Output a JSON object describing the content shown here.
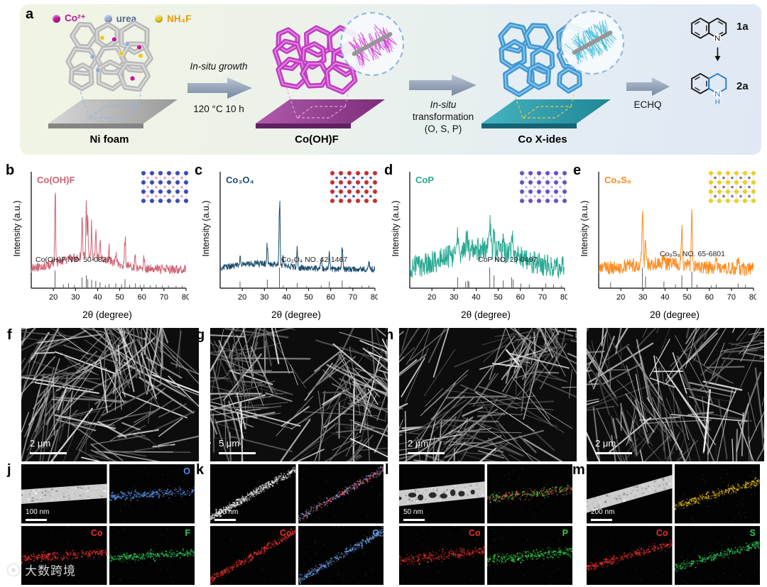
{
  "panels": {
    "a_letter": "a",
    "xrd_letters": [
      "b",
      "c",
      "d",
      "e"
    ],
    "sem_letters": [
      "f",
      "g",
      "h",
      "i"
    ],
    "eds_letters": [
      "j",
      "k",
      "l",
      "m"
    ]
  },
  "panel_a": {
    "legend": [
      {
        "label": "Co²⁺",
        "color": "#c2189c",
        "text_color": "#b81694"
      },
      {
        "label": "urea",
        "color": "#9aaad8",
        "text_color": "#56668e"
      },
      {
        "label": "NH₄F",
        "color": "#eccb2e",
        "text_color": "#df9c0e"
      }
    ],
    "substrates": [
      {
        "name": "Ni foam",
        "foam": "#b9b9b9",
        "foam_hi": "#e6e6e6",
        "plat_a": "#d6d6d6",
        "plat_b": "#9a9a9a",
        "front": "#858585",
        "dash": "#8fb4e8",
        "dots": true
      },
      {
        "name": "Co(OH)F",
        "foam": "#c23ac2",
        "foam_hi": "#ea9aea",
        "plat_a": "#b05aac",
        "plat_b": "#7c2d78",
        "front": "#5f2160",
        "dash": "#ef9fe0",
        "dots": false
      },
      {
        "name": "Co X-ides",
        "foam": "#3e97d2",
        "foam_hi": "#9ed2ee",
        "plat_a": "#46b4c2",
        "plat_b": "#1f8694",
        "front": "#156473",
        "dash": "#e8d040",
        "dots": false
      }
    ],
    "insets": [
      {
        "needle_color": "#d242d2"
      },
      {
        "needle_color": "#38b9d8"
      }
    ],
    "arrow1": {
      "line1": "In-situ growth",
      "line2": "120 °C 10 h"
    },
    "arrow2": {
      "line1": "In-situ",
      "line2": "transformation",
      "line3": "(O, S, P)"
    },
    "arrow3": {
      "label": "ECHQ"
    },
    "reaction": {
      "reactant_id": "1a",
      "product_id": "2a",
      "n_label": "N",
      "h_label": "H",
      "highlight_color": "#1f78d1"
    }
  },
  "xrd_common": {
    "xlabel": "2θ (degree)",
    "ylabel": "Intensity (a.u.)",
    "xmin": 10,
    "xmax": 80,
    "xticks": [
      20,
      30,
      40,
      50,
      60,
      70,
      80
    ]
  },
  "chart_data": [
    {
      "type": "line",
      "panel": "b",
      "title": "Co(OH)F",
      "color": "#d06273",
      "reference": "Co(OH)F NO. 50-0827",
      "xlabel": "2θ (degree)",
      "ylabel": "Intensity (a.u.)",
      "xlim": [
        10,
        80
      ],
      "peaks": [
        [
          20.8,
          0.8,
          0.3
        ],
        [
          33.0,
          0.38,
          0.3
        ],
        [
          34.9,
          0.5,
          0.3
        ],
        [
          35.6,
          0.4,
          0.3
        ],
        [
          37.3,
          0.34,
          0.3
        ],
        [
          39.2,
          0.3,
          0.3
        ],
        [
          41.1,
          0.2,
          0.3
        ],
        [
          45.2,
          0.12,
          0.3
        ],
        [
          48.2,
          0.12,
          0.3
        ],
        [
          52.4,
          0.34,
          0.35
        ],
        [
          57.1,
          0.14,
          0.35
        ],
        [
          61.0,
          0.1,
          0.4
        ]
      ],
      "hump": {
        "c": 35,
        "w": 16,
        "h": 0.14
      },
      "noise": 0.05,
      "seed": 7,
      "ref_sticks": [
        [
          20.8,
          0.85
        ],
        [
          24.5,
          0.15
        ],
        [
          26.9,
          0.2
        ],
        [
          29.5,
          0.12
        ],
        [
          33.0,
          0.5
        ],
        [
          34.9,
          0.6
        ],
        [
          35.6,
          0.42
        ],
        [
          37.3,
          0.38
        ],
        [
          39.2,
          0.32
        ],
        [
          41.1,
          0.26
        ],
        [
          43.5,
          0.12
        ],
        [
          45.2,
          0.18
        ],
        [
          48.2,
          0.2
        ],
        [
          50.8,
          0.15
        ],
        [
          52.4,
          0.42
        ],
        [
          54.5,
          0.12
        ],
        [
          57.1,
          0.2
        ],
        [
          59.3,
          0.12
        ],
        [
          61.0,
          0.14
        ],
        [
          63.8,
          0.1
        ],
        [
          66.5,
          0.13
        ],
        [
          69.2,
          0.1
        ],
        [
          72.0,
          0.1
        ],
        [
          75.5,
          0.09
        ],
        [
          78.2,
          0.08
        ]
      ],
      "inset_colors": [
        "#3a4bb0",
        "#e8a0b8"
      ]
    },
    {
      "type": "line",
      "panel": "c",
      "title": "Co₃O₄",
      "color": "#1d4d6e",
      "reference": "Co₃O₄ NO. 42-1467",
      "xlabel": "2θ (degree)",
      "ylabel": "Intensity (a.u.)",
      "xlim": [
        10,
        80
      ],
      "peaks": [
        [
          19.0,
          0.1,
          0.35
        ],
        [
          31.3,
          0.22,
          0.3
        ],
        [
          36.85,
          0.72,
          0.3
        ],
        [
          38.5,
          0.08,
          0.35
        ],
        [
          44.8,
          0.2,
          0.35
        ],
        [
          55.7,
          0.08,
          0.4
        ],
        [
          59.4,
          0.2,
          0.35
        ],
        [
          65.2,
          0.25,
          0.35
        ],
        [
          77.3,
          0.06,
          0.4
        ]
      ],
      "hump": {
        "c": 28,
        "w": 16,
        "h": 0.06
      },
      "noise": 0.035,
      "seed": 13,
      "ref_sticks": [
        [
          19.0,
          0.3
        ],
        [
          31.3,
          0.4
        ],
        [
          36.85,
          1.0
        ],
        [
          38.5,
          0.1
        ],
        [
          44.8,
          0.22
        ],
        [
          49.1,
          0.08
        ],
        [
          55.65,
          0.1
        ],
        [
          59.35,
          0.3
        ],
        [
          65.2,
          0.35
        ],
        [
          68.6,
          0.05
        ],
        [
          74.1,
          0.08
        ],
        [
          77.3,
          0.1
        ]
      ],
      "inset_colors": [
        "#c03030",
        "#4050c0"
      ]
    },
    {
      "type": "line",
      "panel": "d",
      "title": "CoP",
      "color": "#27a892",
      "reference": "CoP NO. 29-0497",
      "xlabel": "2θ (degree)",
      "ylabel": "Intensity (a.u.)",
      "xlim": [
        10,
        80
      ],
      "peaks": [
        [
          31.6,
          0.18,
          0.4
        ],
        [
          35.4,
          0.12,
          0.4
        ],
        [
          36.3,
          0.15,
          0.4
        ],
        [
          46.2,
          0.3,
          0.45
        ],
        [
          48.1,
          0.25,
          0.45
        ],
        [
          52.3,
          0.15,
          0.45
        ],
        [
          56.6,
          0.2,
          0.5
        ]
      ],
      "hump": {
        "c": 43,
        "w": 22,
        "h": 0.22
      },
      "noise": 0.13,
      "seed": 21,
      "ref_sticks": [
        [
          31.6,
          0.5
        ],
        [
          35.3,
          0.3
        ],
        [
          36.3,
          0.35
        ],
        [
          36.7,
          0.3
        ],
        [
          46.2,
          1.0
        ],
        [
          48.1,
          0.6
        ],
        [
          52.3,
          0.35
        ],
        [
          56.0,
          0.5
        ],
        [
          56.8,
          0.4
        ],
        [
          60.2,
          0.2
        ],
        [
          64.0,
          0.15
        ],
        [
          71.5,
          0.2
        ],
        [
          75.0,
          0.15
        ],
        [
          78.5,
          0.1
        ]
      ],
      "inset_colors": [
        "#6a4fc0",
        "#c8b8ea"
      ]
    },
    {
      "type": "line",
      "panel": "e",
      "title": "Co₉S₈",
      "color": "#ff8a1e",
      "reference": "Co₉S₈ NO. 65-6801",
      "xlabel": "2θ (degree)",
      "ylabel": "Intensity (a.u.)",
      "xlim": [
        10,
        80
      ],
      "peaks": [
        [
          29.8,
          0.55,
          0.4
        ],
        [
          31.2,
          0.3,
          0.4
        ],
        [
          39.5,
          0.12,
          0.45
        ],
        [
          47.6,
          0.35,
          0.45
        ],
        [
          52.1,
          0.5,
          0.4
        ],
        [
          63.2,
          0.08,
          0.5
        ],
        [
          73.0,
          0.1,
          0.5
        ]
      ],
      "hump": {
        "c": 38,
        "w": 20,
        "h": 0.06
      },
      "noise": 0.075,
      "seed": 29,
      "ref_sticks": [
        [
          15.4,
          0.25
        ],
        [
          29.8,
          1.0
        ],
        [
          31.2,
          0.55
        ],
        [
          39.5,
          0.3
        ],
        [
          44.7,
          0.15
        ],
        [
          47.6,
          0.6
        ],
        [
          52.1,
          0.8
        ],
        [
          54.4,
          0.15
        ],
        [
          61.0,
          0.1
        ],
        [
          63.2,
          0.15
        ],
        [
          73.0,
          0.2
        ],
        [
          76.4,
          0.15
        ]
      ],
      "inset_colors": [
        "#e8d020",
        "#777777"
      ]
    }
  ],
  "sem_panels": [
    {
      "scale_bar": "2 μm",
      "seed": 3
    },
    {
      "scale_bar": "5 μm",
      "seed": 4
    },
    {
      "scale_bar": "2 μm",
      "seed": 5
    },
    {
      "scale_bar": "2 μm",
      "seed": 6
    }
  ],
  "eds_panels": [
    {
      "scale_bar": "100 nm",
      "angle": -4,
      "band_width": 20,
      "seed": 41,
      "quads": [
        {
          "kind": "stem"
        },
        {
          "kind": "map",
          "element": "O",
          "color": "#5c8fe8"
        },
        {
          "kind": "map",
          "element": "Co",
          "color": "#e83030"
        },
        {
          "kind": "map",
          "element": "F",
          "color": "#2ecc5a"
        }
      ]
    },
    {
      "scale_bar": "100 nm",
      "angle": -30,
      "band_width": 15,
      "seed": 42,
      "quads": [
        {
          "kind": "stem-speckle"
        },
        {
          "kind": "overlay",
          "colors": [
            "#e05050",
            "#7fa8e8"
          ]
        },
        {
          "kind": "map",
          "element": "Co",
          "color": "#e83030"
        },
        {
          "kind": "map",
          "element": "O",
          "color": "#6f9fe8"
        }
      ]
    },
    {
      "scale_bar": "50 nm",
      "angle": -6,
      "band_width": 22,
      "seed": 43,
      "quads": [
        {
          "kind": "stem-hollow"
        },
        {
          "kind": "overlay",
          "colors": [
            "#3ecf4a",
            "#e05040"
          ]
        },
        {
          "kind": "map",
          "element": "Co",
          "color": "#e83030"
        },
        {
          "kind": "map",
          "element": "P",
          "color": "#35d04a"
        }
      ]
    },
    {
      "scale_bar": "200 nm",
      "angle": -16,
      "band_width": 18,
      "seed": 44,
      "quads": [
        {
          "kind": "stem"
        },
        {
          "kind": "overlay",
          "colors": [
            "#e8c722",
            "#d4aa10"
          ]
        },
        {
          "kind": "map",
          "element": "Co",
          "color": "#e83030"
        },
        {
          "kind": "map",
          "element": "S",
          "color": "#2ecc5a"
        }
      ]
    }
  ],
  "watermark": {
    "text": "大数跨境"
  }
}
